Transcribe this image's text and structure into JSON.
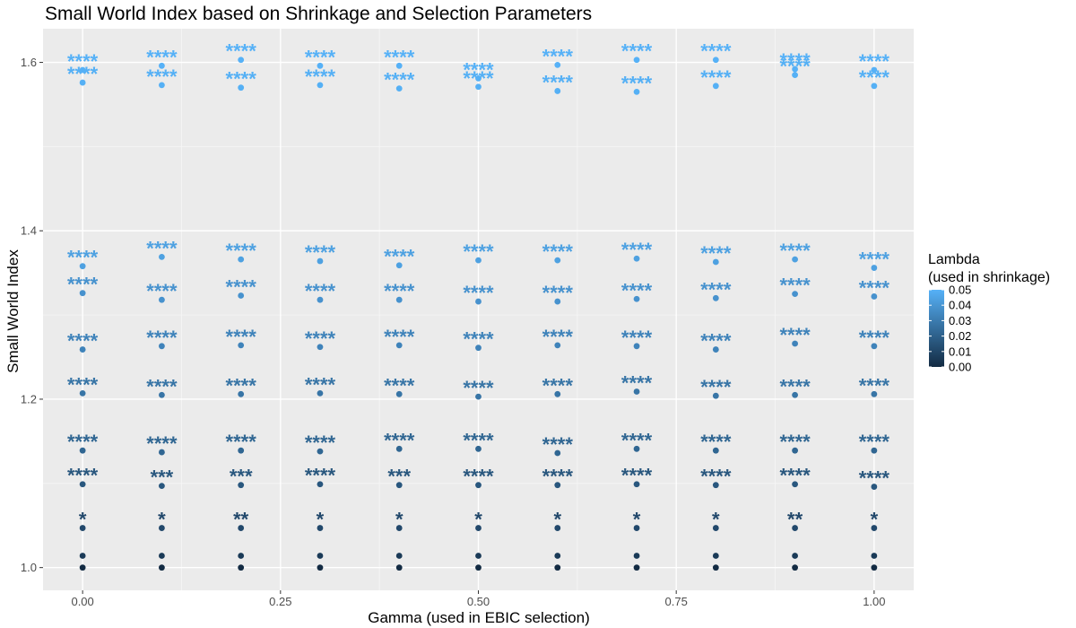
{
  "chart_data": {
    "type": "scatter",
    "title": "Small World Index based on Shrinkage and Selection Parameters",
    "xlabel": "Gamma (used in EBIC selection)",
    "ylabel": "Small World Index",
    "xlim": [
      -0.05,
      1.05
    ],
    "ylim": [
      0.973,
      1.64
    ],
    "x_ticks": [
      0,
      0.25,
      0.5,
      0.75,
      1
    ],
    "x_tick_labels": [
      "0.00",
      "0.25",
      "0.50",
      "0.75",
      "1.00"
    ],
    "y_ticks": [
      1.0,
      1.2,
      1.4,
      1.6
    ],
    "y_tick_labels": [
      "1.0",
      "1.2",
      "1.4",
      "1.6"
    ],
    "grid": true,
    "legend": {
      "title_line1": "Lambda",
      "title_line2": "(used in shrinkage)",
      "position": "right",
      "range": [
        0,
        0.05
      ],
      "labels": [
        "0.05",
        "0.04",
        "0.03",
        "0.02",
        "0.01",
        "0.00"
      ],
      "color_low": "#132B43",
      "color_high": "#56B1F7"
    },
    "gamma": [
      0,
      0.1,
      0.2,
      0.3,
      0.4,
      0.5,
      0.6,
      0.7,
      0.8,
      0.9,
      1.0
    ],
    "series": [
      {
        "lambda": 0.0,
        "y": [
          1.0,
          1.0,
          1.0,
          1.0,
          1.0,
          1.0,
          1.0,
          1.0,
          1.0,
          1.0,
          1.0
        ],
        "stars": [
          "",
          "",
          "",
          "",
          "",
          "",
          "",
          "",
          "",
          "",
          ""
        ]
      },
      {
        "lambda": 0.0055,
        "y": [
          1.014,
          1.014,
          1.014,
          1.014,
          1.014,
          1.014,
          1.014,
          1.014,
          1.014,
          1.014,
          1.014
        ],
        "stars": [
          "",
          "",
          "",
          "",
          "",
          "",
          "",
          "",
          "",
          "",
          ""
        ]
      },
      {
        "lambda": 0.011,
        "y": [
          1.047,
          1.047,
          1.047,
          1.047,
          1.047,
          1.047,
          1.047,
          1.047,
          1.047,
          1.047,
          1.047
        ],
        "stars": [
          "*",
          "*",
          "**",
          "*",
          "*",
          "*",
          "*",
          "*",
          "*",
          "**",
          "*"
        ]
      },
      {
        "lambda": 0.0165,
        "y": [
          1.099,
          1.097,
          1.098,
          1.099,
          1.098,
          1.098,
          1.098,
          1.099,
          1.098,
          1.099,
          1.096
        ],
        "stars": [
          "****",
          "***",
          "***",
          "****",
          "***",
          "****",
          "****",
          "****",
          "****",
          "****",
          "****"
        ]
      },
      {
        "lambda": 0.022,
        "y": [
          1.139,
          1.137,
          1.139,
          1.138,
          1.141,
          1.141,
          1.136,
          1.141,
          1.139,
          1.139,
          1.139
        ],
        "stars": [
          "****",
          "****",
          "****",
          "****",
          "****",
          "****",
          "****",
          "****",
          "****",
          "****",
          "****"
        ]
      },
      {
        "lambda": 0.0275,
        "y": [
          1.207,
          1.205,
          1.206,
          1.207,
          1.206,
          1.203,
          1.206,
          1.209,
          1.204,
          1.205,
          1.206
        ],
        "stars": [
          "****",
          "****",
          "****",
          "****",
          "****",
          "****",
          "****",
          "****",
          "****",
          "****",
          "****"
        ]
      },
      {
        "lambda": 0.033,
        "y": [
          1.259,
          1.263,
          1.264,
          1.262,
          1.264,
          1.261,
          1.264,
          1.263,
          1.259,
          1.266,
          1.263
        ],
        "stars": [
          "****",
          "****",
          "****",
          "****",
          "****",
          "****",
          "****",
          "****",
          "****",
          "****",
          "****"
        ]
      },
      {
        "lambda": 0.0385,
        "y": [
          1.326,
          1.318,
          1.323,
          1.318,
          1.318,
          1.316,
          1.316,
          1.319,
          1.32,
          1.325,
          1.322
        ],
        "stars": [
          "****",
          "****",
          "****",
          "****",
          "****",
          "****",
          "****",
          "****",
          "****",
          "****",
          "****"
        ]
      },
      {
        "lambda": 0.044,
        "y": [
          1.358,
          1.369,
          1.366,
          1.364,
          1.359,
          1.365,
          1.365,
          1.367,
          1.363,
          1.366,
          1.356
        ],
        "stars": [
          "****",
          "****",
          "****",
          "****",
          "****",
          "****",
          "****",
          "****",
          "****",
          "****",
          "****"
        ]
      },
      {
        "lambda": 0.0495,
        "y": [
          1.576,
          1.573,
          1.57,
          1.573,
          1.569,
          1.571,
          1.566,
          1.565,
          1.572,
          1.585,
          1.572
        ],
        "stars": [
          "****",
          "****",
          "****",
          "****",
          "****",
          "****",
          "****",
          "****",
          "****",
          "****",
          "****"
        ]
      },
      {
        "lambda": 0.0505,
        "y": [
          1.591,
          1.596,
          1.603,
          1.596,
          1.596,
          1.581,
          1.597,
          1.603,
          1.603,
          1.592,
          1.591
        ],
        "stars": [
          "****",
          "****",
          "****",
          "****",
          "****",
          "****",
          "****",
          "****",
          "****",
          "****",
          "****"
        ]
      }
    ]
  }
}
